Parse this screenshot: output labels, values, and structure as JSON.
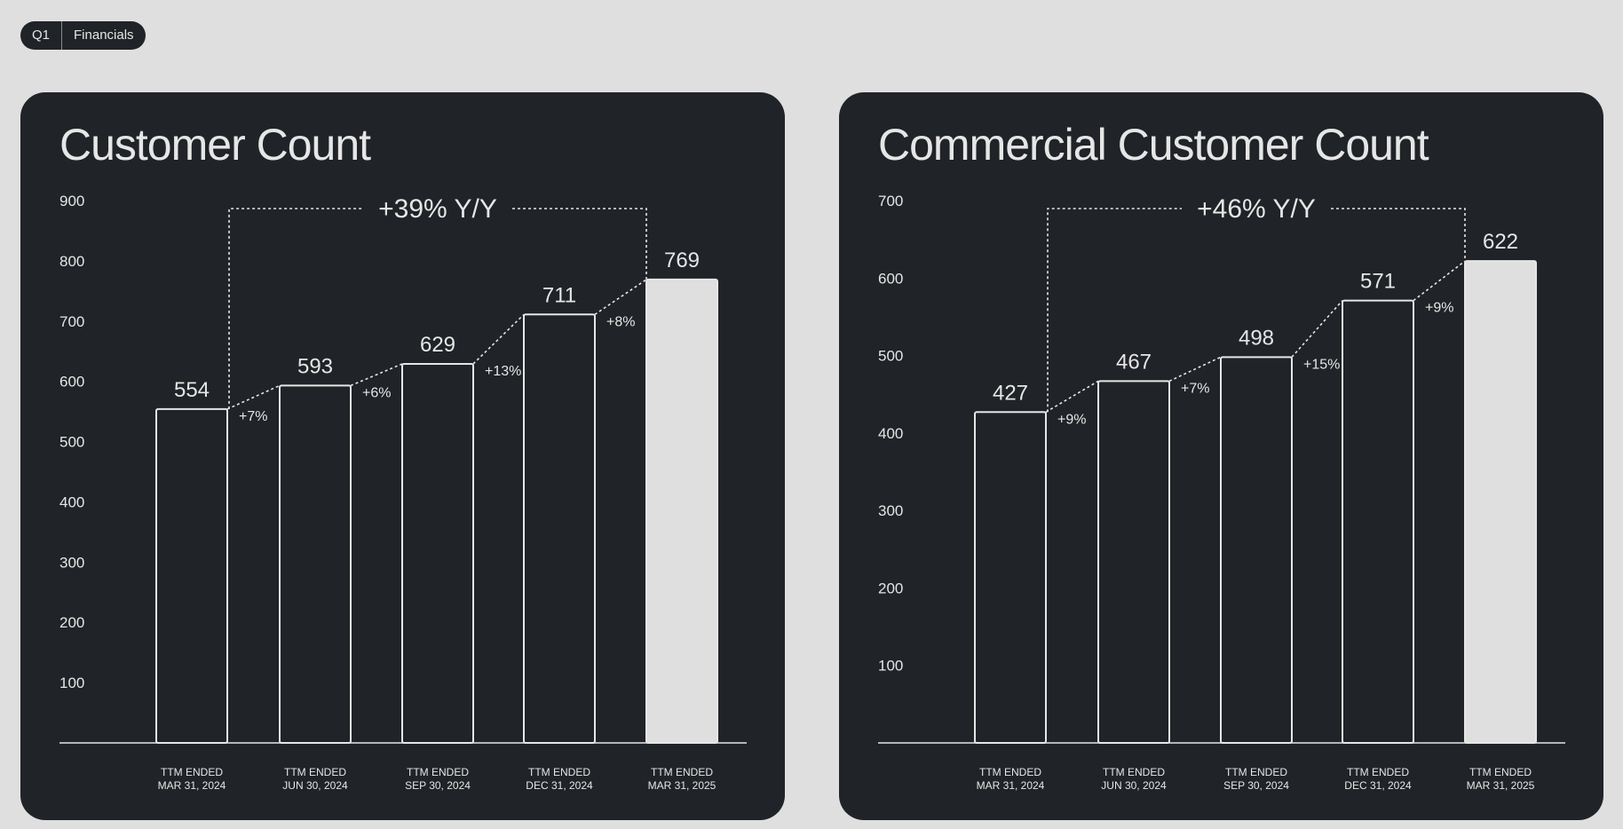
{
  "badge": {
    "quarter": "Q1",
    "section": "Financials"
  },
  "colors": {
    "background": "#dfdfdf",
    "panel": "#202327",
    "text": "#e6e6e6",
    "highlight_bar": "#dfdfdf"
  },
  "chart_data": [
    {
      "type": "bar",
      "title": "Customer Count",
      "categories": [
        [
          "TTM ENDED",
          "MAR 31, 2024"
        ],
        [
          "TTM ENDED",
          "JUN 30, 2024"
        ],
        [
          "TTM ENDED",
          "SEP 30, 2024"
        ],
        [
          "TTM ENDED",
          "DEC 31, 2024"
        ],
        [
          "TTM ENDED",
          "MAR 31, 2025"
        ]
      ],
      "values": [
        554,
        593,
        629,
        711,
        769
      ],
      "value_labels": [
        "554",
        "593",
        "629",
        "711",
        "769"
      ],
      "growth_labels": [
        "+7%",
        "+6%",
        "+13%",
        "+8%"
      ],
      "yoy_label": "+39% Y/Y",
      "yticks": [
        100,
        200,
        300,
        400,
        500,
        600,
        700,
        800,
        900
      ],
      "ylim": [
        0,
        900
      ],
      "highlight_index": 4,
      "grid": false
    },
    {
      "type": "bar",
      "title": "Commercial Customer Count",
      "categories": [
        [
          "TTM ENDED",
          "MAR 31, 2024"
        ],
        [
          "TTM ENDED",
          "JUN 30, 2024"
        ],
        [
          "TTM ENDED",
          "SEP 30, 2024"
        ],
        [
          "TTM ENDED",
          "DEC 31, 2024"
        ],
        [
          "TTM ENDED",
          "MAR 31, 2025"
        ]
      ],
      "values": [
        427,
        467,
        498,
        571,
        622
      ],
      "value_labels": [
        "427",
        "467",
        "498",
        "571",
        "622"
      ],
      "growth_labels": [
        "+9%",
        "+7%",
        "+15%",
        "+9%"
      ],
      "yoy_label": "+46% Y/Y",
      "yticks": [
        100,
        200,
        300,
        400,
        500,
        600,
        700
      ],
      "ylim": [
        0,
        700
      ],
      "highlight_index": 4,
      "grid": false
    }
  ]
}
